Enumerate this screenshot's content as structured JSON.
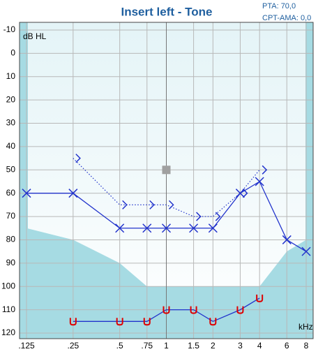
{
  "chart_data": {
    "type": "audiogram",
    "title": "Insert left - Tone",
    "info": [
      "PTA: 70,0",
      "CPT-AMA: 0,0"
    ],
    "y_label": "dB HL",
    "x_label": "kHz",
    "xlim": [
      0.125,
      8
    ],
    "log_x": true,
    "xticks": [
      {
        "value": 0.125,
        "label": ".125"
      },
      {
        "value": 0.25,
        "label": ".25"
      },
      {
        "value": 0.5,
        "label": ".5"
      },
      {
        "value": 0.75,
        "label": ".75"
      },
      1,
      1.5,
      2,
      3,
      4,
      6,
      8
    ],
    "ylim": [
      -10,
      120
    ],
    "y_inverted": true,
    "yticks": [
      -10,
      0,
      10,
      20,
      30,
      40,
      50,
      60,
      70,
      80,
      90,
      100,
      110,
      120
    ],
    "grid": true,
    "shaded_area": {
      "color": "#a6dbe3",
      "x": [
        0.125,
        0.25,
        0.5,
        0.75,
        4,
        6,
        8
      ],
      "values": [
        75,
        80,
        90,
        100,
        100,
        85,
        80
      ]
    },
    "series": [
      {
        "marker": "x",
        "line": "solid",
        "color": "#2233cc",
        "x": [
          0.125,
          0.25,
          0.5,
          0.75,
          1,
          1.5,
          2,
          3,
          4,
          6,
          8
        ],
        "values": [
          60,
          60,
          75,
          75,
          75,
          75,
          75,
          60,
          55,
          80,
          85
        ]
      },
      {
        "marker": ">",
        "line": "dotted",
        "color": "#2233cc",
        "x": [
          0.25,
          0.5,
          0.75,
          1,
          1.5,
          2,
          3,
          4
        ],
        "values": [
          45,
          65,
          65,
          65,
          70,
          70,
          60,
          50
        ]
      },
      {
        "marker": "u",
        "line": "solid",
        "color": "#2233cc",
        "marker_color": "#dd0000",
        "x": [
          0.25,
          0.5,
          0.75,
          1,
          1.5,
          2,
          3,
          4
        ],
        "values": [
          115,
          115,
          115,
          110,
          110,
          115,
          110,
          105
        ]
      },
      {
        "marker": "square",
        "line": "none",
        "color": "#a0a0a0",
        "x": [
          1
        ],
        "values": [
          50
        ]
      }
    ]
  }
}
